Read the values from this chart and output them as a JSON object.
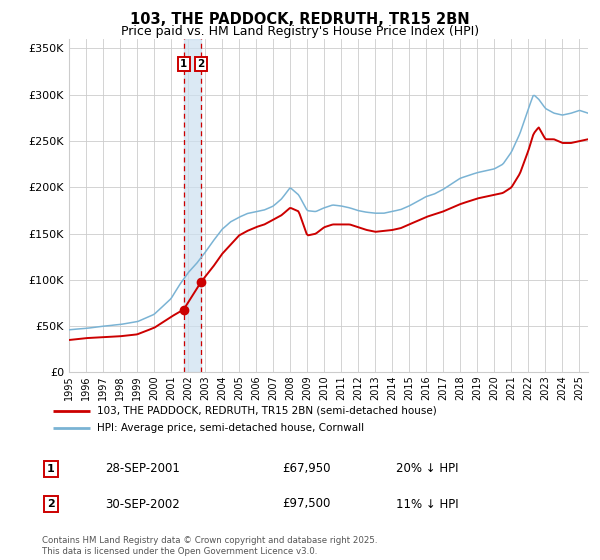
{
  "title": "103, THE PADDOCK, REDRUTH, TR15 2BN",
  "subtitle": "Price paid vs. HM Land Registry's House Price Index (HPI)",
  "ylim": [
    0,
    360000
  ],
  "xlim_start": 1995.0,
  "xlim_end": 2025.5,
  "yticks": [
    0,
    50000,
    100000,
    150000,
    200000,
    250000,
    300000,
    350000
  ],
  "ytick_labels": [
    "£0",
    "£50K",
    "£100K",
    "£150K",
    "£200K",
    "£250K",
    "£300K",
    "£350K"
  ],
  "xtick_years": [
    1995,
    1996,
    1997,
    1998,
    1999,
    2000,
    2001,
    2002,
    2003,
    2004,
    2005,
    2006,
    2007,
    2008,
    2009,
    2010,
    2011,
    2012,
    2013,
    2014,
    2015,
    2016,
    2017,
    2018,
    2019,
    2020,
    2021,
    2022,
    2023,
    2024,
    2025
  ],
  "hpi_color": "#7ab3d4",
  "price_color": "#cc0000",
  "grid_color": "#cccccc",
  "background_color": "#ffffff",
  "sale1_date": 2001.74,
  "sale1_price": 67950,
  "sale1_label": "1",
  "sale2_date": 2002.75,
  "sale2_price": 97500,
  "sale2_label": "2",
  "vline1_x": 2001.74,
  "vline2_x": 2002.75,
  "shade_x1": 2001.74,
  "shade_x2": 2002.75,
  "legend_line1": "103, THE PADDOCK, REDRUTH, TR15 2BN (semi-detached house)",
  "legend_line2": "HPI: Average price, semi-detached house, Cornwall",
  "annotation1_date": "28-SEP-2001",
  "annotation1_price": "£67,950",
  "annotation1_hpi": "20% ↓ HPI",
  "annotation1_num": "1",
  "annotation2_date": "30-SEP-2002",
  "annotation2_price": "£97,500",
  "annotation2_hpi": "11% ↓ HPI",
  "annotation2_num": "2",
  "footnote": "Contains HM Land Registry data © Crown copyright and database right 2025.\nThis data is licensed under the Open Government Licence v3.0.",
  "title_fontsize": 10.5,
  "subtitle_fontsize": 9.0,
  "hpi_anchors_x": [
    1995.0,
    1996.0,
    1997.0,
    1998.0,
    1999.0,
    2000.0,
    2001.0,
    2001.5,
    2002.0,
    2002.5,
    2003.0,
    2003.5,
    2004.0,
    2004.5,
    2005.0,
    2005.5,
    2006.0,
    2006.5,
    2007.0,
    2007.5,
    2008.0,
    2008.5,
    2009.0,
    2009.5,
    2010.0,
    2010.5,
    2011.0,
    2011.5,
    2012.0,
    2012.5,
    2013.0,
    2013.5,
    2014.0,
    2014.5,
    2015.0,
    2015.5,
    2016.0,
    2016.5,
    2017.0,
    2017.5,
    2018.0,
    2018.5,
    2019.0,
    2019.5,
    2020.0,
    2020.5,
    2021.0,
    2021.5,
    2022.0,
    2022.3,
    2022.6,
    2023.0,
    2023.5,
    2024.0,
    2024.5,
    2025.0,
    2025.5
  ],
  "hpi_anchors_y": [
    46000,
    47500,
    50000,
    52000,
    55000,
    63000,
    80000,
    95000,
    108000,
    118000,
    130000,
    143000,
    155000,
    163000,
    168000,
    172000,
    174000,
    176000,
    180000,
    188000,
    200000,
    192000,
    175000,
    174000,
    178000,
    181000,
    180000,
    178000,
    175000,
    173000,
    172000,
    172000,
    174000,
    176000,
    180000,
    185000,
    190000,
    193000,
    198000,
    204000,
    210000,
    213000,
    216000,
    218000,
    220000,
    225000,
    238000,
    258000,
    285000,
    300000,
    295000,
    285000,
    280000,
    278000,
    280000,
    283000,
    280000
  ],
  "price_anchors_x": [
    1995.0,
    1996.0,
    1997.0,
    1998.0,
    1999.0,
    2000.0,
    2001.0,
    2001.74,
    2002.75,
    2003.5,
    2004.0,
    2004.5,
    2005.0,
    2005.5,
    2006.0,
    2006.5,
    2007.0,
    2007.5,
    2008.0,
    2008.5,
    2009.0,
    2009.5,
    2010.0,
    2010.5,
    2011.0,
    2011.5,
    2012.0,
    2012.5,
    2013.0,
    2013.5,
    2014.0,
    2014.5,
    2015.0,
    2015.5,
    2016.0,
    2016.5,
    2017.0,
    2017.5,
    2018.0,
    2018.5,
    2019.0,
    2019.5,
    2020.0,
    2020.5,
    2021.0,
    2021.5,
    2022.0,
    2022.3,
    2022.6,
    2023.0,
    2023.5,
    2024.0,
    2024.5,
    2025.0,
    2025.5
  ],
  "price_anchors_y": [
    35000,
    37000,
    38000,
    39000,
    41000,
    48000,
    60000,
    67950,
    97500,
    115000,
    128000,
    138000,
    148000,
    153000,
    157000,
    160000,
    165000,
    170000,
    178000,
    174000,
    148000,
    150000,
    157000,
    160000,
    160000,
    160000,
    157000,
    154000,
    152000,
    153000,
    154000,
    156000,
    160000,
    164000,
    168000,
    171000,
    174000,
    178000,
    182000,
    185000,
    188000,
    190000,
    192000,
    194000,
    200000,
    215000,
    240000,
    258000,
    265000,
    252000,
    252000,
    248000,
    248000,
    250000,
    252000
  ]
}
